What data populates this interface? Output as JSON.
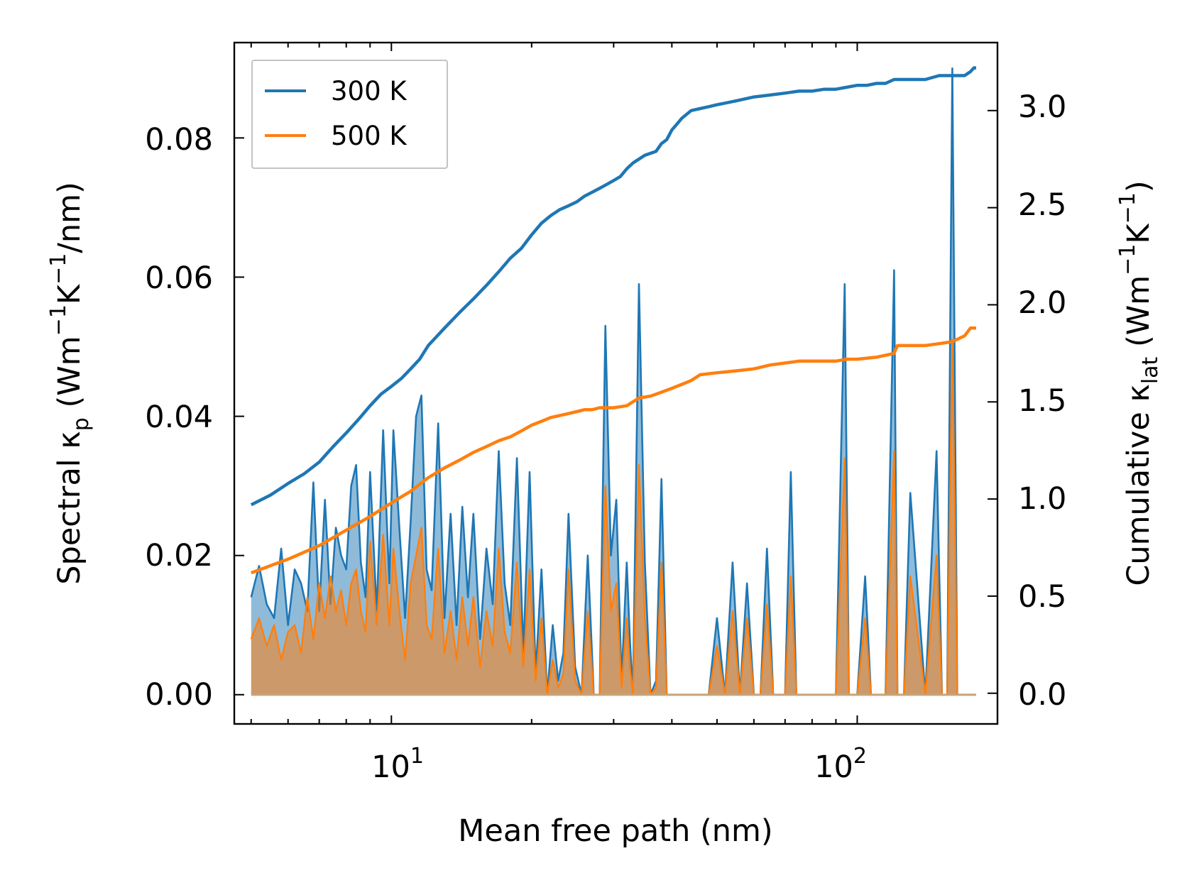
{
  "chart_data": {
    "type": "line+area",
    "xlabel": "Mean free path (nm)",
    "ylabel_left": {
      "base": "Spectral κ",
      "sub": "p",
      "unit_prefix": " (Wm",
      "exp1": "−1",
      "mid": "K",
      "exp2": "−1",
      "tail": "/nm)"
    },
    "ylabel_right": {
      "base": "Cumulative κ",
      "sub": "lat",
      "unit_prefix": " (Wm",
      "exp1": "−1",
      "mid": "K",
      "exp2": "−1",
      "tail": ")"
    },
    "xscale": "log",
    "xlim": [
      4.6,
      200
    ],
    "ylim_left": [
      -0.0042,
      0.0937
    ],
    "ylim_right": [
      -0.158,
      3.35
    ],
    "xticks": [
      {
        "base": "10",
        "exp": "1",
        "value": 10
      },
      {
        "base": "10",
        "exp": "2",
        "value": 100
      }
    ],
    "yticks_left": [
      "0.00",
      "0.02",
      "0.04",
      "0.06",
      "0.08"
    ],
    "yticks_left_values": [
      0,
      0.02,
      0.04,
      0.06,
      0.08
    ],
    "yticks_right": [
      "0.0",
      "0.5",
      "1.0",
      "1.5",
      "2.0",
      "2.5",
      "3.0"
    ],
    "yticks_right_values": [
      0,
      0.5,
      1.0,
      1.5,
      2.0,
      2.5,
      3.0
    ],
    "legend": {
      "position": "top-left",
      "entries": [
        "300 K",
        "500 K"
      ]
    },
    "colors": {
      "s300": "#1f77b4",
      "s500": "#ff7f0e",
      "fill300": "#1f77b4",
      "fill500": "#ff7f0e"
    },
    "spectral_300K": {
      "x": [
        5.0,
        5.2,
        5.4,
        5.6,
        5.8,
        6.0,
        6.2,
        6.4,
        6.6,
        6.8,
        7.0,
        7.2,
        7.4,
        7.6,
        7.8,
        8.0,
        8.2,
        8.4,
        8.6,
        8.8,
        9.0,
        9.3,
        9.6,
        9.9,
        10.1,
        10.4,
        10.7,
        11.0,
        11.3,
        11.6,
        11.9,
        12.2,
        12.6,
        13.0,
        13.4,
        13.8,
        14.2,
        14.6,
        15.0,
        15.5,
        16.0,
        16.5,
        17.0,
        17.5,
        18.0,
        18.6,
        19.2,
        19.8,
        20.4,
        21.0,
        21.6,
        22.2,
        22.8,
        23.4,
        24.0,
        24.8,
        25.6,
        26.4,
        27.2,
        28.0,
        28.8,
        29.6,
        30.4,
        31.2,
        32.0,
        32.5,
        33.0,
        34.0,
        35.0,
        36.0,
        37.0,
        38.0,
        39.0,
        40.0,
        41.0,
        42.0,
        43.0,
        44.0,
        45.0,
        46.0,
        48.0,
        50.0,
        52.0,
        54.0,
        56.0,
        58.0,
        60.0,
        62.0,
        64.0,
        66.0,
        68.0,
        70.0,
        72.0,
        74.0,
        76.0,
        78.0,
        80.0,
        85.0,
        90.0,
        94.0,
        96.0,
        98.0,
        100.0,
        104.0,
        107.0,
        110.0,
        115.0,
        120.0,
        122.0,
        124.0,
        126.0,
        130.0,
        140.0,
        148.0,
        152.0,
        156.0,
        160.0,
        164.0,
        168.0,
        172.0,
        176.0,
        180.0
      ],
      "y": [
        0.014,
        0.0185,
        0.013,
        0.011,
        0.021,
        0.01,
        0.018,
        0.016,
        0.012,
        0.0305,
        0.012,
        0.028,
        0.013,
        0.024,
        0.02,
        0.018,
        0.03,
        0.033,
        0.019,
        0.014,
        0.032,
        0.012,
        0.038,
        0.016,
        0.038,
        0.024,
        0.011,
        0.025,
        0.04,
        0.043,
        0.018,
        0.015,
        0.039,
        0.011,
        0.026,
        0.01,
        0.027,
        0.014,
        0.026,
        0.008,
        0.021,
        0.013,
        0.035,
        0.016,
        0.01,
        0.034,
        0.006,
        0.032,
        0.003,
        0.018,
        0.0,
        0.01,
        0.002,
        0.006,
        0.026,
        0.004,
        0.0,
        0.02,
        0.0,
        0.0,
        0.053,
        0.02,
        0.028,
        0.002,
        0.019,
        0.008,
        0.0,
        0.059,
        0.019,
        0.0,
        0.002,
        0.031,
        0.0,
        0.0,
        0.0,
        0.0,
        0.0,
        0.0,
        0.0,
        0.0,
        0.0,
        0.011,
        0.0,
        0.019,
        0.0,
        0.016,
        0.0,
        0.0,
        0.021,
        0.0,
        0.0,
        0.0,
        0.032,
        0.0,
        0.0,
        0.0,
        0.0,
        0.0,
        0.0,
        0.059,
        0.0,
        0.0,
        0.0,
        0.017,
        0.0,
        0.0,
        0.0,
        0.061,
        0.0,
        0.0,
        0.0,
        0.029,
        0.0,
        0.035,
        0.0,
        0.0,
        0.09,
        0.0,
        0.0,
        0.0,
        0.0,
        0.0
      ]
    },
    "spectral_500K": {
      "x": [
        5.0,
        5.2,
        5.4,
        5.6,
        5.8,
        6.0,
        6.2,
        6.4,
        6.6,
        6.8,
        7.0,
        7.2,
        7.4,
        7.6,
        7.8,
        8.0,
        8.2,
        8.4,
        8.6,
        8.8,
        9.0,
        9.3,
        9.6,
        9.9,
        10.1,
        10.4,
        10.7,
        11.0,
        11.3,
        11.6,
        11.9,
        12.2,
        12.6,
        13.0,
        13.4,
        13.8,
        14.2,
        14.6,
        15.0,
        15.5,
        16.0,
        16.5,
        17.0,
        17.5,
        18.0,
        18.6,
        19.2,
        19.8,
        20.4,
        21.0,
        21.6,
        22.2,
        22.8,
        23.4,
        24.0,
        24.8,
        25.6,
        26.4,
        27.2,
        28.0,
        28.8,
        29.6,
        30.4,
        31.2,
        32.0,
        32.5,
        33.0,
        34.0,
        35.0,
        36.0,
        37.0,
        38.0,
        39.0,
        40.0,
        41.0,
        42.0,
        43.0,
        44.0,
        45.0,
        46.0,
        48.0,
        50.0,
        52.0,
        54.0,
        56.0,
        58.0,
        60.0,
        62.0,
        64.0,
        66.0,
        68.0,
        70.0,
        72.0,
        74.0,
        76.0,
        78.0,
        80.0,
        85.0,
        90.0,
        94.0,
        96.0,
        98.0,
        100.0,
        104.0,
        107.0,
        110.0,
        115.0,
        120.0,
        122.0,
        124.0,
        126.0,
        130.0,
        140.0,
        148.0,
        152.0,
        156.0,
        160.0,
        164.0,
        168.0,
        172.0,
        176.0,
        180.0
      ],
      "y": [
        0.008,
        0.011,
        0.007,
        0.01,
        0.005,
        0.009,
        0.01,
        0.006,
        0.014,
        0.008,
        0.016,
        0.011,
        0.017,
        0.012,
        0.015,
        0.01,
        0.016,
        0.018,
        0.012,
        0.009,
        0.022,
        0.01,
        0.023,
        0.01,
        0.021,
        0.012,
        0.005,
        0.016,
        0.02,
        0.024,
        0.01,
        0.008,
        0.021,
        0.006,
        0.012,
        0.005,
        0.014,
        0.007,
        0.014,
        0.004,
        0.012,
        0.007,
        0.021,
        0.009,
        0.006,
        0.019,
        0.004,
        0.018,
        0.002,
        0.011,
        0.0,
        0.005,
        0.001,
        0.003,
        0.018,
        0.002,
        0.0,
        0.012,
        0.0,
        0.0,
        0.03,
        0.012,
        0.016,
        0.001,
        0.011,
        0.004,
        0.0,
        0.033,
        0.011,
        0.0,
        0.001,
        0.019,
        0.0,
        0.0,
        0.0,
        0.0,
        0.0,
        0.0,
        0.0,
        0.0,
        0.0,
        0.007,
        0.0,
        0.012,
        0.0,
        0.011,
        0.0,
        0.0,
        0.013,
        0.0,
        0.0,
        0.0,
        0.017,
        0.0,
        0.0,
        0.0,
        0.0,
        0.0,
        0.0,
        0.034,
        0.0,
        0.0,
        0.0,
        0.011,
        0.0,
        0.0,
        0.0,
        0.035,
        0.0,
        0.0,
        0.0,
        0.017,
        0.0,
        0.02,
        0.0,
        0.0,
        0.051,
        0.0,
        0.0,
        0.0,
        0.0,
        0.0
      ]
    },
    "cumulative_300K": {
      "x": [
        5.0,
        5.5,
        6.0,
        6.5,
        7.0,
        7.5,
        8.0,
        8.5,
        9.0,
        9.5,
        10.0,
        10.5,
        11.0,
        11.5,
        12.0,
        13.0,
        14.0,
        15.0,
        16.0,
        17.0,
        18.0,
        19.0,
        20.0,
        21.0,
        22.0,
        23.0,
        24.0,
        25.0,
        26.0,
        27.0,
        28.0,
        29.0,
        30.0,
        31.0,
        32.0,
        33.0,
        34.0,
        35.0,
        36.0,
        37.0,
        38.0,
        39.0,
        40.0,
        41.0,
        42.0,
        44.0,
        46.0,
        48.0,
        50.0,
        55.0,
        60.0,
        65.0,
        70.0,
        75.0,
        80.0,
        85.0,
        90.0,
        95.0,
        100.0,
        105.0,
        110.0,
        115.0,
        120.0,
        125.0,
        130.0,
        140.0,
        150.0,
        160.0,
        170.0,
        175.0,
        178.0,
        180.0
      ],
      "y": [
        0.97,
        1.02,
        1.08,
        1.13,
        1.19,
        1.27,
        1.34,
        1.41,
        1.48,
        1.54,
        1.58,
        1.62,
        1.67,
        1.72,
        1.79,
        1.88,
        1.96,
        2.03,
        2.1,
        2.17,
        2.24,
        2.29,
        2.36,
        2.42,
        2.46,
        2.49,
        2.51,
        2.53,
        2.56,
        2.58,
        2.6,
        2.62,
        2.64,
        2.66,
        2.7,
        2.73,
        2.75,
        2.77,
        2.78,
        2.79,
        2.83,
        2.85,
        2.9,
        2.93,
        2.96,
        3.0,
        3.01,
        3.02,
        3.03,
        3.05,
        3.07,
        3.08,
        3.09,
        3.1,
        3.1,
        3.11,
        3.11,
        3.12,
        3.13,
        3.13,
        3.14,
        3.14,
        3.16,
        3.16,
        3.16,
        3.16,
        3.18,
        3.18,
        3.18,
        3.2,
        3.22,
        3.22
      ]
    },
    "cumulative_500K": {
      "x": [
        5.0,
        6.0,
        7.0,
        8.0,
        9.0,
        10.0,
        11.0,
        12.0,
        13.0,
        14.0,
        15.0,
        16.0,
        17.0,
        18.0,
        19.0,
        20.0,
        21.0,
        22.0,
        23.0,
        24.0,
        25.0,
        26.0,
        27.0,
        28.0,
        30.0,
        32.0,
        34.0,
        36.0,
        38.0,
        40.0,
        42.0,
        44.0,
        46.0,
        50.0,
        55.0,
        60.0,
        65.0,
        70.0,
        75.0,
        80.0,
        90.0,
        95.0,
        100.0,
        110.0,
        120.0,
        122.0,
        130.0,
        140.0,
        150.0,
        160.0,
        170.0,
        175.0,
        180.0
      ],
      "y": [
        0.62,
        0.69,
        0.76,
        0.84,
        0.91,
        0.98,
        1.04,
        1.11,
        1.16,
        1.2,
        1.24,
        1.27,
        1.3,
        1.32,
        1.35,
        1.38,
        1.4,
        1.42,
        1.43,
        1.44,
        1.45,
        1.46,
        1.46,
        1.47,
        1.47,
        1.48,
        1.52,
        1.53,
        1.55,
        1.57,
        1.59,
        1.61,
        1.64,
        1.65,
        1.66,
        1.67,
        1.69,
        1.7,
        1.71,
        1.71,
        1.71,
        1.72,
        1.72,
        1.73,
        1.75,
        1.79,
        1.79,
        1.79,
        1.8,
        1.81,
        1.84,
        1.88,
        1.88
      ]
    }
  }
}
